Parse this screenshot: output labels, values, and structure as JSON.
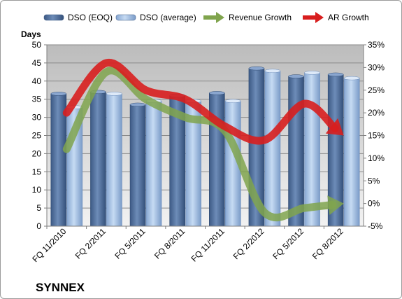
{
  "chart_data": {
    "type": "bar",
    "title": "SYNNEX",
    "ylabel": "Days",
    "y2label": "",
    "categories": [
      "FQ 11/2010",
      "FQ 2/2011",
      "FQ 5/2011",
      "FQ 8/2011",
      "FQ 11/2011",
      "FQ 2/2012",
      "FQ 5/2012",
      "FQ 8/2012"
    ],
    "ylim": [
      0,
      50
    ],
    "yticks": [
      0,
      5,
      10,
      15,
      20,
      25,
      30,
      35,
      40,
      45,
      50
    ],
    "y2lim": [
      -5,
      35
    ],
    "y2ticks": [
      -5,
      0,
      5,
      10,
      15,
      20,
      25,
      30,
      35
    ],
    "y2tick_suffix": "%",
    "grid": true,
    "legend_position": "top",
    "bar_series": [
      {
        "name": "DSO (EOQ)",
        "color": "#4f6e9c",
        "values": [
          36.5,
          37.0,
          33.5,
          36.0,
          36.7,
          43.5,
          41.3,
          41.8
        ]
      },
      {
        "name": "DSO (average)",
        "color": "#a9c4e8",
        "values": [
          32.8,
          36.5,
          34.5,
          34.5,
          34.5,
          42.8,
          42.3,
          40.8
        ]
      }
    ],
    "line_series": [
      {
        "name": "Revenue Growth",
        "color": "#80a44d",
        "axis": "right",
        "values": [
          12,
          29,
          23,
          19,
          16,
          -2,
          -1,
          0
        ]
      },
      {
        "name": "AR Growth",
        "color": "#d81e1e",
        "axis": "right",
        "values": [
          20,
          31,
          25,
          23,
          17,
          14,
          22,
          15
        ]
      }
    ]
  }
}
